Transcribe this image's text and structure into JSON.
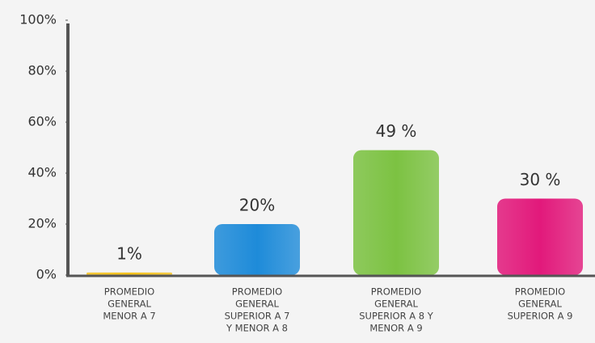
{
  "chart_data": {
    "type": "bar",
    "categories": [
      [
        "PROMEDIO",
        "GENERAL",
        "MENOR A 7"
      ],
      [
        "PROMEDIO",
        "GENERAL",
        "SUPERIOR A 7",
        "Y MENOR A 8"
      ],
      [
        "PROMEDIO",
        "GENERAL",
        "SUPERIOR A 8 Y",
        "MENOR A 9"
      ],
      [
        "PROMEDIO",
        "GENERAL",
        "SUPERIOR A 9"
      ]
    ],
    "values": [
      1,
      20,
      49,
      30
    ],
    "value_labels": [
      "1%",
      "20%",
      "49 %",
      "30 %"
    ],
    "colors": [
      "#f5c21b",
      "#1e8bd9",
      "#7cc242",
      "#e2197b"
    ],
    "ylim": [
      0,
      100
    ],
    "yticks": [
      {
        "value": 0,
        "label": "0%"
      },
      {
        "value": 20,
        "label": "20%"
      },
      {
        "value": 40,
        "label": "40%"
      },
      {
        "value": 60,
        "label": "60%"
      },
      {
        "value": 80,
        "label": "80%"
      },
      {
        "value": 100,
        "label": "100%"
      }
    ]
  }
}
